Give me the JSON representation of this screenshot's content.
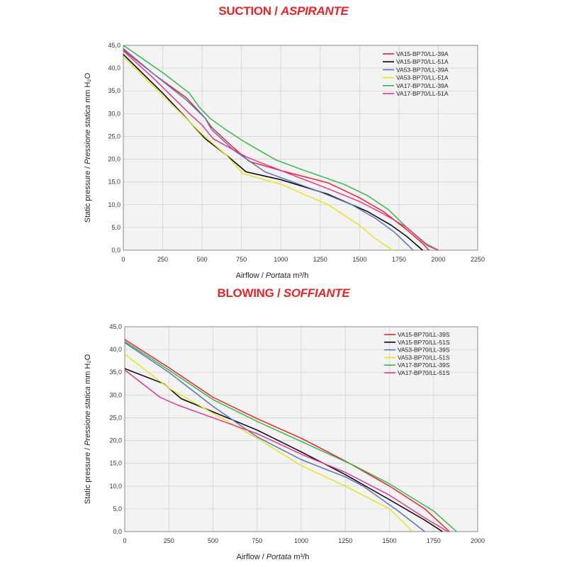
{
  "chart_data": [
    {
      "type": "line",
      "title_main": "SUCTION /",
      "title_italic": "ASPIRANTE",
      "xlabel_main": "Airflow /",
      "xlabel_italic": "Portata",
      "xlabel_unit": "m³/h",
      "ylabel_main": "Static pressure /",
      "ylabel_italic": "Pressione statica",
      "ylabel_unit": "mm H₂O",
      "xlim": [
        0,
        2250
      ],
      "ylim": [
        0,
        45
      ],
      "xticks": [
        "0",
        "250",
        "500",
        "750",
        "1000",
        "1250",
        "1500",
        "1750",
        "2000",
        "2250"
      ],
      "yticks": [
        "0,0",
        "5,0",
        "10,0",
        "15,0",
        "20,0",
        "25,0",
        "30,0",
        "35,0",
        "40,0",
        "45,0"
      ],
      "grid": true,
      "legend_position": "top-right",
      "series": [
        {
          "name": "VA15-BP70/LL-39A",
          "color": "#e3262b",
          "points": [
            [
              0,
              44
            ],
            [
              200,
              38.5
            ],
            [
              400,
              33.5
            ],
            [
              520,
              29
            ],
            [
              560,
              27
            ],
            [
              700,
              22.5
            ],
            [
              800,
              19.5
            ],
            [
              1000,
              17.5
            ],
            [
              1300,
              14.8
            ],
            [
              1500,
              11.5
            ],
            [
              1650,
              8.5
            ],
            [
              1800,
              4.5
            ],
            [
              1900,
              1.5
            ],
            [
              1940,
              0
            ]
          ]
        },
        {
          "name": "VA15-BP70/LL-51A",
          "color": "#000000",
          "points": [
            [
              0,
              43
            ],
            [
              250,
              34.5
            ],
            [
              400,
              29
            ],
            [
              520,
              24.5
            ],
            [
              650,
              21
            ],
            [
              780,
              17.2
            ],
            [
              1000,
              15.5
            ],
            [
              1300,
              12.3
            ],
            [
              1550,
              8.5
            ],
            [
              1700,
              5.5
            ],
            [
              1800,
              3
            ],
            [
              1900,
              0
            ]
          ]
        },
        {
          "name": "VA53-BP70/LL-39A",
          "color": "#5c74b8",
          "points": [
            [
              0,
              44.3
            ],
            [
              200,
              38.5
            ],
            [
              400,
              33
            ],
            [
              520,
              29
            ],
            [
              560,
              26.5
            ],
            [
              700,
              22
            ],
            [
              900,
              17.2
            ],
            [
              1250,
              12.8
            ],
            [
              1450,
              10
            ],
            [
              1600,
              7
            ],
            [
              1720,
              4
            ],
            [
              1840,
              0
            ]
          ]
        },
        {
          "name": "VA53-BP70/LL-51A",
          "color": "#e5e329",
          "points": [
            [
              0,
              42.5
            ],
            [
              250,
              34
            ],
            [
              500,
              25.5
            ],
            [
              650,
              21
            ],
            [
              760,
              16.8
            ],
            [
              1000,
              14.5
            ],
            [
              1300,
              10
            ],
            [
              1500,
              5.5
            ],
            [
              1600,
              2.5
            ],
            [
              1710,
              0
            ]
          ]
        },
        {
          "name": "VA17-BP70/LL-39A",
          "color": "#3ab648",
          "points": [
            [
              0,
              45
            ],
            [
              250,
              39
            ],
            [
              420,
              34.5
            ],
            [
              480,
              31.5
            ],
            [
              550,
              29
            ],
            [
              650,
              26.5
            ],
            [
              760,
              24
            ],
            [
              860,
              22
            ],
            [
              970,
              19.8
            ],
            [
              1150,
              17.5
            ],
            [
              1400,
              14.5
            ],
            [
              1550,
              12
            ],
            [
              1680,
              9
            ],
            [
              1800,
              5
            ],
            [
              1920,
              1.5
            ],
            [
              2000,
              0
            ]
          ]
        },
        {
          "name": "VA17-BP70/LL-51A",
          "color": "#e2378f",
          "points": [
            [
              0,
              43.8
            ],
            [
              200,
              37.5
            ],
            [
              420,
              30
            ],
            [
              500,
              27.5
            ],
            [
              570,
              24.5
            ],
            [
              780,
              20.5
            ],
            [
              1000,
              17.5
            ],
            [
              1300,
              13.5
            ],
            [
              1500,
              10.7
            ],
            [
              1650,
              8
            ],
            [
              1800,
              5
            ],
            [
              1930,
              1
            ],
            [
              2000,
              0
            ]
          ]
        }
      ]
    },
    {
      "type": "line",
      "title_main": "BLOWING /",
      "title_italic": "SOFFIANTE",
      "xlabel_main": "Airflow /",
      "xlabel_italic": "Portata",
      "xlabel_unit": "m³/h",
      "ylabel_main": "Static pressure /",
      "ylabel_italic": "Pressione statica",
      "ylabel_unit": "mm H₂O",
      "xlim": [
        0,
        2000
      ],
      "ylim": [
        0,
        45
      ],
      "xticks": [
        "0",
        "250",
        "500",
        "750",
        "1000",
        "1250",
        "1500",
        "1750",
        "2000"
      ],
      "yticks": [
        "0,0",
        "5,0",
        "10,0",
        "15,0",
        "20,0",
        "25,0",
        "30,0",
        "35,0",
        "40,0",
        "45,0"
      ],
      "grid": true,
      "legend_position": "top-right",
      "series": [
        {
          "name": "VA15-BP70/LL-39S",
          "color": "#e3262b",
          "points": [
            [
              0,
              42.2
            ],
            [
              250,
              36
            ],
            [
              500,
              29.5
            ],
            [
              750,
              24.8
            ],
            [
              1000,
              20.5
            ],
            [
              1250,
              15.5
            ],
            [
              1500,
              10
            ],
            [
              1700,
              5
            ],
            [
              1840,
              0
            ]
          ]
        },
        {
          "name": "VA15-BP70/LL-51S",
          "color": "#000000",
          "points": [
            [
              0,
              35.8
            ],
            [
              220,
              32.5
            ],
            [
              320,
              29.2
            ],
            [
              500,
              26.3
            ],
            [
              750,
              22.3
            ],
            [
              1000,
              17.5
            ],
            [
              1250,
              12.5
            ],
            [
              1500,
              7
            ],
            [
              1700,
              2.5
            ],
            [
              1800,
              0
            ]
          ]
        },
        {
          "name": "VA53-BP70/LL-39S",
          "color": "#5c74b8",
          "points": [
            [
              0,
              41.5
            ],
            [
              250,
              35
            ],
            [
              500,
              27.5
            ],
            [
              750,
              20.8
            ],
            [
              1000,
              15.8
            ],
            [
              1250,
              12
            ],
            [
              1350,
              10
            ],
            [
              1550,
              4.5
            ],
            [
              1700,
              0
            ]
          ]
        },
        {
          "name": "VA53-BP70/LL-51S",
          "color": "#e5e329",
          "points": [
            [
              0,
              39
            ],
            [
              250,
              31.5
            ],
            [
              500,
              26
            ],
            [
              750,
              20.5
            ],
            [
              1000,
              14.5
            ],
            [
              1250,
              10
            ],
            [
              1500,
              5
            ],
            [
              1630,
              0
            ]
          ]
        },
        {
          "name": "VA17-BP70/LL-39S",
          "color": "#3ab648",
          "points": [
            [
              0,
              41.8
            ],
            [
              250,
              35.5
            ],
            [
              500,
              29
            ],
            [
              750,
              24.2
            ],
            [
              1000,
              19.8
            ],
            [
              1300,
              14.5
            ],
            [
              1500,
              10.5
            ],
            [
              1750,
              4.5
            ],
            [
              1880,
              0
            ]
          ]
        },
        {
          "name": "VA17-BP70/LL-51S",
          "color": "#e2378f",
          "points": [
            [
              0,
              35.5
            ],
            [
              200,
              29.5
            ],
            [
              300,
              27.8
            ],
            [
              500,
              25
            ],
            [
              750,
              21.5
            ],
            [
              1000,
              17
            ],
            [
              1250,
              13
            ],
            [
              1500,
              8
            ],
            [
              1700,
              3
            ],
            [
              1830,
              0
            ]
          ]
        }
      ]
    }
  ]
}
